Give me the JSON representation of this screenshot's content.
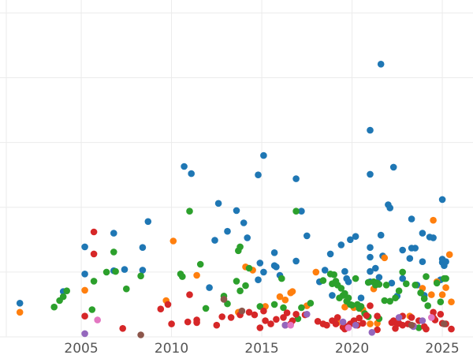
{
  "chart_data": {
    "type": "scatter",
    "title": "",
    "xlabel": "",
    "ylabel": "",
    "xlim": [
      2000.5,
      2026.7
    ],
    "ylim": [
      0,
      520
    ],
    "x_ticks": [
      2005,
      2010,
      2015,
      2020,
      2025
    ],
    "x_tick_labels": [
      "2005",
      "2010",
      "2015",
      "2020",
      "2025"
    ],
    "y_gridlines": [
      0,
      100,
      200,
      300,
      400,
      500
    ],
    "y_tick_labels_visible": false,
    "grid": true,
    "legend": "none",
    "series": [
      {
        "color": "#1f77b4",
        "points": [
          [
            2001.6,
            52
          ],
          [
            2004.0,
            70
          ],
          [
            2005.2,
            139
          ],
          [
            2005.2,
            97
          ],
          [
            2006.8,
            160
          ],
          [
            2006.8,
            102
          ],
          [
            2007.4,
            104
          ],
          [
            2008.4,
            138
          ],
          [
            2008.4,
            103
          ],
          [
            2008.7,
            178
          ],
          [
            2010.7,
            263
          ],
          [
            2011.1,
            252
          ],
          [
            2012.1,
            76
          ],
          [
            2012.4,
            149
          ],
          [
            2012.6,
            206
          ],
          [
            2013.1,
            163
          ],
          [
            2013.6,
            195
          ],
          [
            2014.0,
            176
          ],
          [
            2014.2,
            153
          ],
          [
            2014.8,
            250
          ],
          [
            2014.8,
            88
          ],
          [
            2014.9,
            114
          ],
          [
            2015.1,
            280
          ],
          [
            2015.1,
            100
          ],
          [
            2015.7,
            130
          ],
          [
            2015.7,
            110
          ],
          [
            2015.8,
            108
          ],
          [
            2016.0,
            95
          ],
          [
            2016.9,
            244
          ],
          [
            2016.9,
            117
          ],
          [
            2017.2,
            194
          ],
          [
            2017.5,
            156
          ],
          [
            2018.2,
            85
          ],
          [
            2018.5,
            103
          ],
          [
            2018.8,
            128
          ],
          [
            2018.9,
            64
          ],
          [
            2019.4,
            142
          ],
          [
            2019.6,
            101
          ],
          [
            2019.7,
            90
          ],
          [
            2019.8,
            85
          ],
          [
            2019.9,
            150
          ],
          [
            2020.2,
            155
          ],
          [
            2020.5,
            60
          ],
          [
            2020.9,
            84
          ],
          [
            2021.0,
            85
          ],
          [
            2021.0,
            101
          ],
          [
            2021.0,
            123
          ],
          [
            2021.0,
            251
          ],
          [
            2021.0,
            319
          ],
          [
            2021.0,
            138
          ],
          [
            2021.3,
            106
          ],
          [
            2021.4,
            84
          ],
          [
            2021.5,
            92
          ],
          [
            2021.6,
            421
          ],
          [
            2021.6,
            157
          ],
          [
            2021.7,
            125
          ],
          [
            2022.0,
            204
          ],
          [
            2022.1,
            199
          ],
          [
            2022.2,
            83
          ],
          [
            2022.3,
            262
          ],
          [
            2022.5,
            63
          ],
          [
            2022.8,
            134
          ],
          [
            2022.8,
            90
          ],
          [
            2023.2,
            121
          ],
          [
            2023.3,
            137
          ],
          [
            2023.3,
            182
          ],
          [
            2023.5,
            137
          ],
          [
            2023.6,
            80
          ],
          [
            2023.9,
            160
          ],
          [
            2023.9,
            116
          ],
          [
            2024.0,
            64
          ],
          [
            2024.3,
            154
          ],
          [
            2024.5,
            153
          ],
          [
            2024.9,
            88
          ],
          [
            2025.0,
            115
          ],
          [
            2025.0,
            212
          ],
          [
            2025.0,
            120
          ],
          [
            2025.1,
            110
          ],
          [
            2025.2,
            116
          ]
        ]
      },
      {
        "color": "#ff7f0e",
        "points": [
          [
            2001.6,
            38
          ],
          [
            2005.2,
            72
          ],
          [
            2009.7,
            56
          ],
          [
            2010.1,
            148
          ],
          [
            2011.4,
            95
          ],
          [
            2013.7,
            38
          ],
          [
            2014.1,
            108
          ],
          [
            2014.5,
            103
          ],
          [
            2015.2,
            47
          ],
          [
            2016.0,
            62
          ],
          [
            2016.3,
            57
          ],
          [
            2016.6,
            68
          ],
          [
            2016.7,
            70
          ],
          [
            2017.5,
            48
          ],
          [
            2018.0,
            100
          ],
          [
            2019.2,
            22
          ],
          [
            2019.6,
            46
          ],
          [
            2020.1,
            45
          ],
          [
            2020.6,
            42
          ],
          [
            2021.0,
            20
          ],
          [
            2021.2,
            74
          ],
          [
            2021.4,
            21
          ],
          [
            2021.8,
            122
          ],
          [
            2023.2,
            32
          ],
          [
            2023.9,
            75
          ],
          [
            2024.4,
            65
          ],
          [
            2024.5,
            180
          ],
          [
            2024.7,
            85
          ],
          [
            2025.0,
            65
          ],
          [
            2025.2,
            76
          ],
          [
            2025.4,
            127
          ],
          [
            2025.5,
            54
          ]
        ]
      },
      {
        "color": "#2ca02c",
        "points": [
          [
            2003.5,
            46
          ],
          [
            2003.8,
            56
          ],
          [
            2004.0,
            62
          ],
          [
            2004.2,
            71
          ],
          [
            2005.6,
            42
          ],
          [
            2005.7,
            86
          ],
          [
            2006.4,
            100
          ],
          [
            2006.8,
            131
          ],
          [
            2006.9,
            101
          ],
          [
            2007.5,
            74
          ],
          [
            2008.3,
            94
          ],
          [
            2010.5,
            97
          ],
          [
            2010.6,
            93
          ],
          [
            2011.0,
            194
          ],
          [
            2011.6,
            112
          ],
          [
            2011.9,
            44
          ],
          [
            2012.9,
            63
          ],
          [
            2013.1,
            51
          ],
          [
            2013.6,
            86
          ],
          [
            2013.7,
            133
          ],
          [
            2013.8,
            139
          ],
          [
            2013.8,
            71
          ],
          [
            2014.1,
            79
          ],
          [
            2014.3,
            106
          ],
          [
            2014.9,
            47
          ],
          [
            2015.7,
            50
          ],
          [
            2016.1,
            90
          ],
          [
            2016.2,
            45
          ],
          [
            2016.9,
            194
          ],
          [
            2017.0,
            28
          ],
          [
            2017.2,
            45
          ],
          [
            2017.7,
            52
          ],
          [
            2018.4,
            87
          ],
          [
            2018.8,
            97
          ],
          [
            2018.9,
            82
          ],
          [
            2019.0,
            96
          ],
          [
            2019.1,
            86
          ],
          [
            2019.2,
            80
          ],
          [
            2019.3,
            60
          ],
          [
            2019.4,
            75
          ],
          [
            2019.5,
            64
          ],
          [
            2019.6,
            67
          ],
          [
            2019.7,
            55
          ],
          [
            2019.8,
            60
          ],
          [
            2019.9,
            50
          ],
          [
            2020.0,
            49
          ],
          [
            2020.2,
            90
          ],
          [
            2020.3,
            50
          ],
          [
            2020.4,
            44
          ],
          [
            2020.5,
            47
          ],
          [
            2020.7,
            36
          ],
          [
            2020.9,
            31
          ],
          [
            2020.9,
            84
          ],
          [
            2021.2,
            85
          ],
          [
            2021.3,
            80
          ],
          [
            2021.4,
            83
          ],
          [
            2021.5,
            81
          ],
          [
            2021.5,
            28
          ],
          [
            2021.8,
            56
          ],
          [
            2021.9,
            80
          ],
          [
            2022.1,
            55
          ],
          [
            2022.4,
            60
          ],
          [
            2022.6,
            71
          ],
          [
            2022.8,
            100
          ],
          [
            2023.0,
            82
          ],
          [
            2023.5,
            80
          ],
          [
            2023.7,
            14
          ],
          [
            2023.8,
            68
          ],
          [
            2024.0,
            59
          ],
          [
            2024.1,
            93
          ],
          [
            2024.2,
            48
          ],
          [
            2024.7,
            83
          ],
          [
            2024.9,
            54
          ],
          [
            2025.1,
            90
          ],
          [
            2025.2,
            90
          ]
        ]
      },
      {
        "color": "#d62728",
        "points": [
          [
            2005.2,
            32
          ],
          [
            2005.7,
            162
          ],
          [
            2005.7,
            128
          ],
          [
            2007.3,
            13
          ],
          [
            2009.4,
            43
          ],
          [
            2009.8,
            50
          ],
          [
            2010.0,
            20
          ],
          [
            2010.9,
            23
          ],
          [
            2011.0,
            65
          ],
          [
            2011.4,
            22
          ],
          [
            2011.4,
            26
          ],
          [
            2012.5,
            18
          ],
          [
            2012.8,
            31
          ],
          [
            2013.3,
            30
          ],
          [
            2013.8,
            34
          ],
          [
            2014.3,
            38
          ],
          [
            2014.6,
            34
          ],
          [
            2014.9,
            14
          ],
          [
            2015.1,
            40
          ],
          [
            2015.2,
            25
          ],
          [
            2015.5,
            20
          ],
          [
            2015.8,
            27
          ],
          [
            2016.2,
            30
          ],
          [
            2016.3,
            18
          ],
          [
            2016.4,
            37
          ],
          [
            2016.6,
            20
          ],
          [
            2016.7,
            25
          ],
          [
            2016.9,
            35
          ],
          [
            2017.4,
            34
          ],
          [
            2018.1,
            24
          ],
          [
            2018.4,
            20
          ],
          [
            2018.6,
            18
          ],
          [
            2018.9,
            25
          ],
          [
            2019.1,
            20
          ],
          [
            2019.2,
            30
          ],
          [
            2019.5,
            15
          ],
          [
            2019.6,
            12
          ],
          [
            2019.7,
            16
          ],
          [
            2019.9,
            20
          ],
          [
            2020.1,
            25
          ],
          [
            2020.3,
            18
          ],
          [
            2020.4,
            29
          ],
          [
            2020.6,
            21
          ],
          [
            2020.8,
            33
          ],
          [
            2021.0,
            48
          ],
          [
            2021.4,
            11
          ],
          [
            2021.4,
            32
          ],
          [
            2022.2,
            22
          ],
          [
            2022.3,
            25
          ],
          [
            2022.4,
            13
          ],
          [
            2022.5,
            20
          ],
          [
            2022.6,
            21
          ],
          [
            2022.8,
            18
          ],
          [
            2022.8,
            32
          ],
          [
            2023.1,
            20
          ],
          [
            2023.3,
            30
          ],
          [
            2023.4,
            17
          ],
          [
            2023.7,
            25
          ],
          [
            2024.0,
            16
          ],
          [
            2024.1,
            12
          ],
          [
            2024.5,
            38
          ],
          [
            2024.5,
            30
          ],
          [
            2024.6,
            26
          ],
          [
            2024.9,
            35
          ],
          [
            2025.0,
            21
          ],
          [
            2025.2,
            20
          ],
          [
            2025.5,
            12
          ]
        ]
      },
      {
        "color": "#9467bd",
        "points": [
          [
            2005.2,
            5
          ],
          [
            2016.3,
            18
          ],
          [
            2017.5,
            35
          ],
          [
            2019.5,
            23
          ],
          [
            2020.2,
            18
          ],
          [
            2021.1,
            7
          ],
          [
            2022.6,
            30
          ],
          [
            2023.4,
            16
          ],
          [
            2023.9,
            25
          ]
        ]
      },
      {
        "color": "#8c564b",
        "points": [
          [
            2008.3,
            3
          ],
          [
            2012.9,
            58
          ],
          [
            2013.9,
            40
          ],
          [
            2023.3,
            18
          ],
          [
            2025.1,
            20
          ]
        ]
      },
      {
        "color": "#e377c2",
        "points": [
          [
            2005.9,
            26
          ],
          [
            2016.6,
            18
          ],
          [
            2019.8,
            14
          ],
          [
            2024.4,
            30
          ]
        ]
      }
    ]
  }
}
